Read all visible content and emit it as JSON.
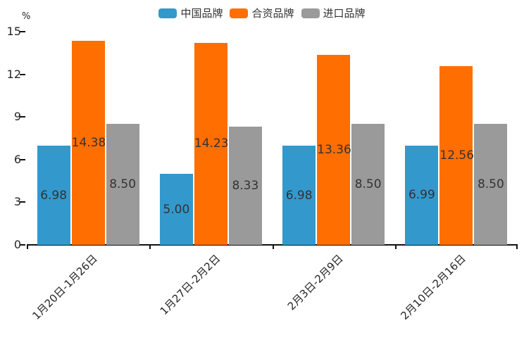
{
  "chart_data": {
    "type": "bar",
    "title": "",
    "unit_label": "%",
    "categories": [
      "1月20日-1月26日",
      "1月27日-2月2日",
      "2月3日-2月9日",
      "2月10日-2月16日"
    ],
    "series": [
      {
        "name": "中国品牌",
        "color": "#3399CC",
        "values": [
          6.98,
          5.0,
          6.98,
          6.99
        ]
      },
      {
        "name": "合资品牌",
        "color": "#FF6E00",
        "values": [
          14.38,
          14.23,
          13.36,
          12.56
        ]
      },
      {
        "name": "进口品牌",
        "color": "#9A9A9A",
        "values": [
          8.5,
          8.33,
          8.5,
          8.5
        ]
      }
    ],
    "value_label_decimals": 2,
    "y_ticks": [
      0,
      3,
      6,
      9,
      12,
      15
    ],
    "ylim": [
      0,
      15
    ],
    "grid": false,
    "legend_position": "top",
    "axis_color": "#111111",
    "tick_label_color": "#262626",
    "value_label_color": "#333333"
  }
}
